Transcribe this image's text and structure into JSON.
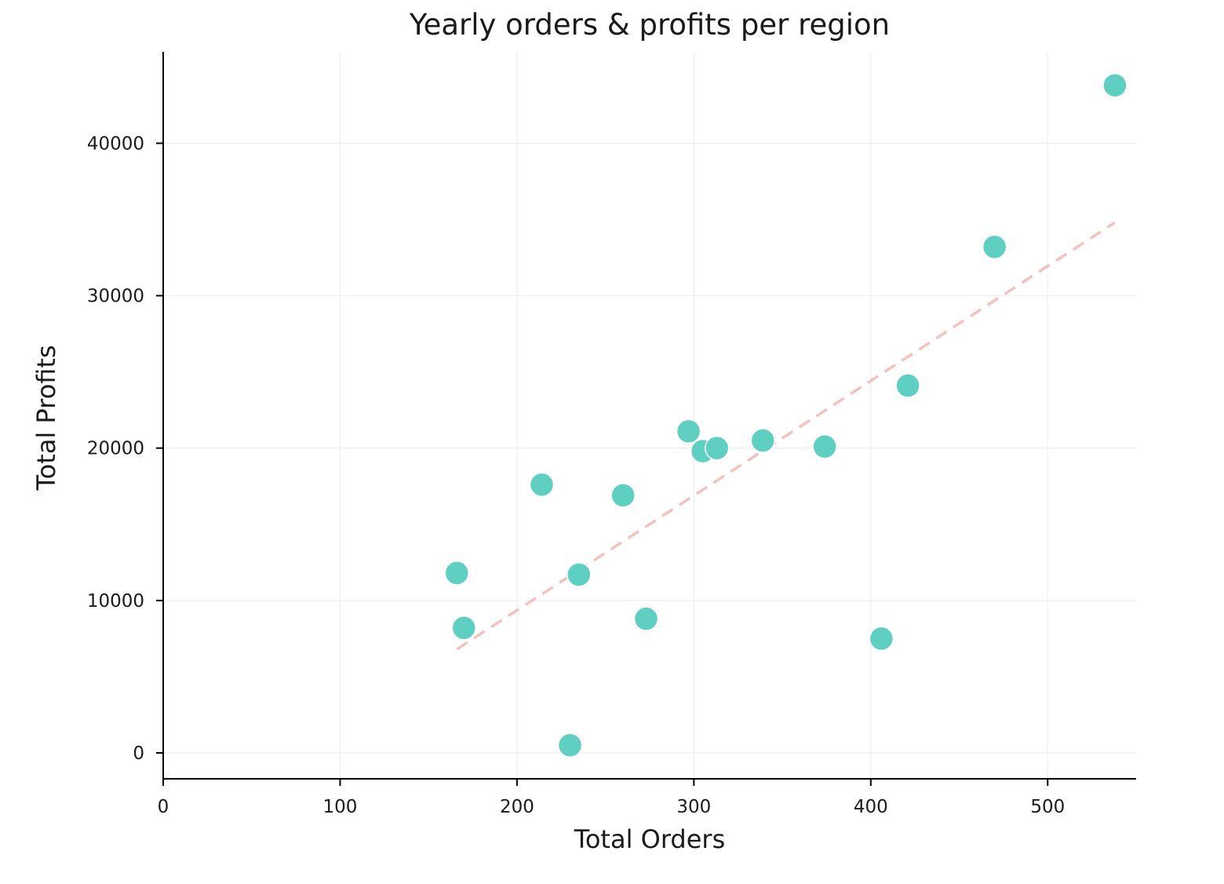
{
  "chart_data": {
    "type": "scatter",
    "title": "Yearly orders & profits per region",
    "xlabel": "Total Orders",
    "ylabel": "Total Profits",
    "xlim": [
      0,
      550
    ],
    "ylim": [
      -1700,
      46000
    ],
    "xticks": [
      0,
      100,
      200,
      300,
      400,
      500
    ],
    "yticks": [
      0,
      10000,
      20000,
      30000,
      40000
    ],
    "grid": true,
    "colors": {
      "points": "#5ECFC1",
      "trend": "#F4C2BC",
      "grid": "#EFEFEF",
      "axis": "#000000"
    },
    "series": [
      {
        "x": [
          166,
          170,
          214,
          230,
          235,
          260,
          273,
          297,
          305,
          313,
          339,
          374,
          406,
          421,
          470,
          538
        ],
        "y": [
          11800,
          8200,
          17600,
          500,
          11700,
          16900,
          8800,
          21100,
          19800,
          20000,
          20500,
          20100,
          7500,
          24100,
          33200,
          43800
        ]
      }
    ],
    "trendline": {
      "x": [
        166,
        538
      ],
      "y": [
        6800,
        34800
      ],
      "style": "dashed"
    }
  }
}
